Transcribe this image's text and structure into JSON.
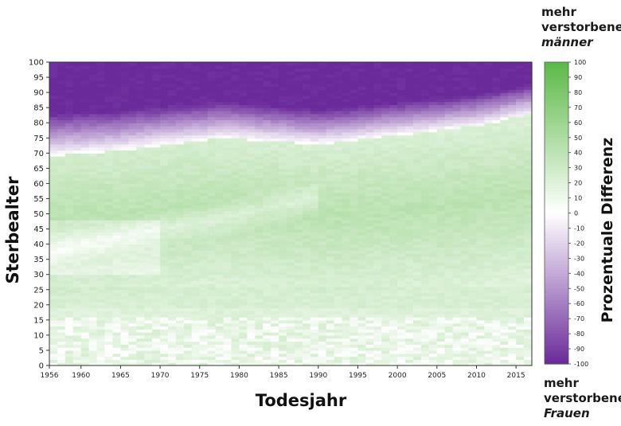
{
  "chart_data": {
    "type": "heatmap",
    "xlabel": "Todesjahr",
    "ylabel": "Sterbealter",
    "x_range": [
      1956,
      2017
    ],
    "y_range": [
      0,
      100
    ],
    "x_ticks": [
      1956,
      1960,
      1965,
      1970,
      1975,
      1980,
      1985,
      1990,
      1995,
      2000,
      2005,
      2010,
      2015
    ],
    "y_ticks": [
      0,
      5,
      10,
      15,
      20,
      25,
      30,
      35,
      40,
      45,
      50,
      55,
      60,
      65,
      70,
      75,
      80,
      85,
      90,
      95,
      100
    ],
    "colorbar": {
      "label": "Prozentuale Differenz",
      "range": [
        -100,
        100
      ],
      "ticks": [
        100,
        90,
        80,
        70,
        60,
        50,
        40,
        30,
        20,
        10,
        0,
        -10,
        -20,
        -30,
        -40,
        -50,
        -60,
        -70,
        -80,
        -90,
        -100
      ],
      "color_positive": "#5cb946",
      "color_zero": "#ffffff",
      "color_negative": "#6a2a9a",
      "top_annotation": {
        "line1": "mehr",
        "line2": "verstorbene",
        "line3": "männer"
      },
      "bottom_annotation": {
        "line1": "mehr",
        "line2": "verstorbene",
        "line3": "Frauen"
      }
    },
    "structure_estimates": {
      "zero_crossing_age": {
        "years": [
          1956,
          1965,
          1978,
          1990,
          2000,
          2010,
          2017
        ],
        "ages": [
          69,
          71,
          75,
          73,
          76,
          79,
          83
        ]
      },
      "max_value": 100,
      "min_value": -100
    }
  }
}
